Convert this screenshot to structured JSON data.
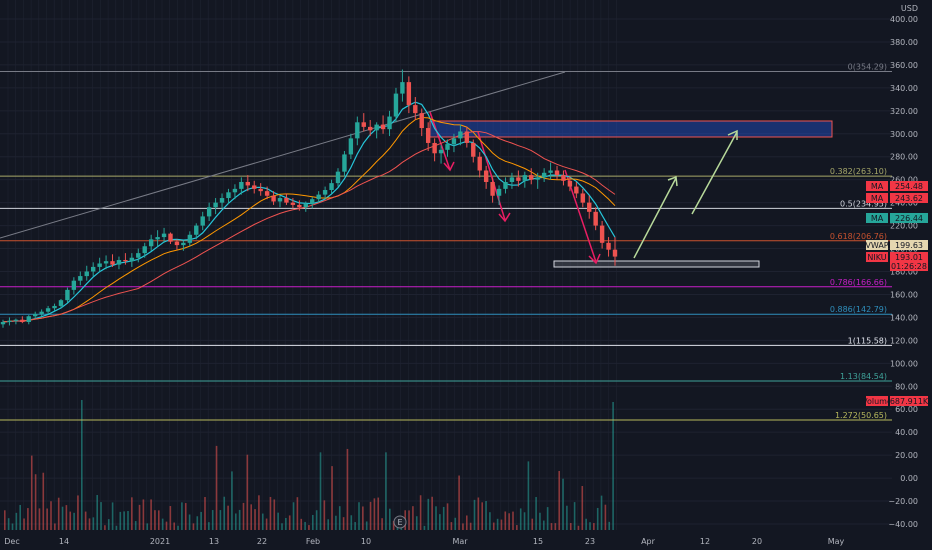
{
  "chart_data": {
    "type": "candlestick",
    "currency": "USD",
    "price_axis": {
      "min": -40,
      "max": 400,
      "ticks": [
        400,
        380,
        360,
        340,
        320,
        300,
        280,
        260,
        240,
        220,
        200,
        180,
        160,
        140,
        120,
        100,
        80,
        60,
        40,
        20,
        0,
        -20,
        -40
      ],
      "tick_labels": [
        "400.00",
        "380.00",
        "360.00",
        "340.00",
        "320.00",
        "300.00",
        "280.00",
        "260.00",
        "240.00",
        "220.00",
        "200.00",
        "180.00",
        "160.00",
        "140.00",
        "120.00",
        "100.00",
        "80.00",
        "60.00",
        "40.00",
        "20.00",
        "0.00",
        "−20.00",
        "−40.00"
      ]
    },
    "time_axis": {
      "labels": [
        "Dec",
        "14",
        "2021",
        "13",
        "22",
        "Feb",
        "10",
        "Mar",
        "15",
        "23",
        "Apr",
        "12",
        "20",
        "May"
      ]
    },
    "fib_levels": [
      {
        "label": "0(354.29)",
        "value": 354.29,
        "color": "#787b86"
      },
      {
        "label": "0.382(263.10)",
        "value": 263.1,
        "color": "#a7a86a"
      },
      {
        "label": "0.5(234.95)",
        "value": 234.95,
        "color": "#d1d4dc"
      },
      {
        "label": "0.618(206.76)",
        "value": 206.76,
        "color": "#c9522e"
      },
      {
        "label": "0.786(166.66)",
        "value": 166.66,
        "color": "#c81fc8"
      },
      {
        "label": "0.886(142.79)",
        "value": 142.79,
        "color": "#2f8fbd"
      },
      {
        "label": "1(115.58)",
        "value": 115.58,
        "color": "#e0e3eb"
      },
      {
        "label": "1.13(84.54)",
        "value": 84.54,
        "color": "#3fa39a"
      },
      {
        "label": "1.272(50.65)",
        "value": 50.65,
        "color": "#b7b85c"
      }
    ],
    "price_tags": [
      {
        "label": "MA",
        "value": "254.48",
        "color": "#f23645"
      },
      {
        "label": "MA",
        "value": "243.62",
        "color": "#f23645"
      },
      {
        "label": "MA",
        "value": "226.44",
        "color": "#26a69a"
      },
      {
        "label": "VWAP",
        "value": "199.63",
        "color": "#e5d7b0"
      },
      {
        "label": "NIKU",
        "value": "193.01",
        "color": "#f23645"
      },
      {
        "label": "",
        "value": "01:26:28",
        "color": "#f23645"
      },
      {
        "label": "Volume",
        "value": "687.911K",
        "color": "#f23645"
      }
    ],
    "candles": [
      [
        134,
        138,
        131,
        136
      ],
      [
        136,
        140,
        133,
        137
      ],
      [
        137,
        139,
        134,
        138
      ],
      [
        138,
        141,
        135,
        136
      ],
      [
        136,
        142,
        134,
        141
      ],
      [
        141,
        145,
        139,
        143
      ],
      [
        143,
        147,
        141,
        145
      ],
      [
        145,
        150,
        143,
        148
      ],
      [
        148,
        152,
        146,
        150
      ],
      [
        150,
        156,
        148,
        155
      ],
      [
        155,
        166,
        153,
        164
      ],
      [
        164,
        175,
        160,
        172
      ],
      [
        172,
        180,
        168,
        176
      ],
      [
        176,
        185,
        172,
        180
      ],
      [
        180,
        188,
        176,
        184
      ],
      [
        184,
        192,
        180,
        187
      ],
      [
        187,
        194,
        182,
        189
      ],
      [
        189,
        195,
        184,
        186
      ],
      [
        186,
        193,
        182,
        190
      ],
      [
        190,
        196,
        186,
        189
      ],
      [
        189,
        196,
        184,
        192
      ],
      [
        192,
        200,
        188,
        196
      ],
      [
        196,
        205,
        192,
        202
      ],
      [
        202,
        212,
        198,
        208
      ],
      [
        208,
        216,
        202,
        210
      ],
      [
        210,
        218,
        205,
        213
      ],
      [
        213,
        214,
        204,
        206
      ],
      [
        206,
        208,
        199,
        203
      ],
      [
        203,
        207,
        198,
        205
      ],
      [
        205,
        215,
        202,
        212
      ],
      [
        212,
        222,
        208,
        220
      ],
      [
        220,
        232,
        216,
        228
      ],
      [
        228,
        240,
        224,
        236
      ],
      [
        236,
        244,
        230,
        240
      ],
      [
        240,
        248,
        235,
        244
      ],
      [
        244,
        252,
        239,
        249
      ],
      [
        249,
        256,
        243,
        252
      ],
      [
        252,
        262,
        247,
        258
      ],
      [
        258,
        264,
        250,
        255
      ],
      [
        255,
        259,
        248,
        252
      ],
      [
        252,
        257,
        246,
        250
      ],
      [
        250,
        254,
        243,
        246
      ],
      [
        246,
        250,
        238,
        241
      ],
      [
        241,
        246,
        236,
        244
      ],
      [
        244,
        248,
        238,
        240
      ],
      [
        240,
        244,
        235,
        238
      ],
      [
        238,
        242,
        233,
        236
      ],
      [
        236,
        241,
        232,
        239
      ],
      [
        239,
        245,
        235,
        243
      ],
      [
        243,
        250,
        240,
        247
      ],
      [
        247,
        254,
        243,
        251
      ],
      [
        251,
        260,
        248,
        257
      ],
      [
        257,
        270,
        254,
        267
      ],
      [
        267,
        285,
        263,
        282
      ],
      [
        282,
        300,
        278,
        296
      ],
      [
        296,
        315,
        290,
        310
      ],
      [
        310,
        318,
        302,
        306
      ],
      [
        306,
        312,
        298,
        303
      ],
      [
        303,
        310,
        296,
        308
      ],
      [
        308,
        316,
        300,
        304
      ],
      [
        304,
        320,
        298,
        315
      ],
      [
        315,
        340,
        310,
        335
      ],
      [
        335,
        356,
        328,
        345
      ],
      [
        345,
        350,
        318,
        325
      ],
      [
        325,
        332,
        312,
        318
      ],
      [
        318,
        322,
        298,
        305
      ],
      [
        305,
        310,
        285,
        292
      ],
      [
        292,
        296,
        276,
        283
      ],
      [
        283,
        290,
        274,
        286
      ],
      [
        286,
        295,
        280,
        291
      ],
      [
        291,
        300,
        284,
        296
      ],
      [
        296,
        308,
        290,
        302
      ],
      [
        302,
        306,
        288,
        292
      ],
      [
        292,
        295,
        275,
        280
      ],
      [
        280,
        284,
        262,
        268
      ],
      [
        268,
        272,
        252,
        258
      ],
      [
        258,
        262,
        240,
        246
      ],
      [
        246,
        255,
        238,
        252
      ],
      [
        252,
        262,
        248,
        258
      ],
      [
        258,
        266,
        252,
        262
      ],
      [
        262,
        268,
        254,
        259
      ],
      [
        259,
        267,
        253,
        264
      ],
      [
        264,
        270,
        256,
        260
      ],
      [
        260,
        266,
        252,
        262
      ],
      [
        262,
        270,
        258,
        266
      ],
      [
        266,
        275,
        260,
        268
      ],
      [
        268,
        272,
        260,
        264
      ],
      [
        264,
        268,
        255,
        259
      ],
      [
        259,
        263,
        250,
        254
      ],
      [
        254,
        258,
        244,
        248
      ],
      [
        248,
        252,
        236,
        240
      ],
      [
        240,
        246,
        226,
        232
      ],
      [
        232,
        236,
        216,
        220
      ],
      [
        220,
        224,
        200,
        205
      ],
      [
        205,
        210,
        193,
        199
      ],
      [
        199,
        210,
        185,
        193
      ]
    ],
    "volume_tags": "Volume"
  },
  "axis_badge": "E"
}
